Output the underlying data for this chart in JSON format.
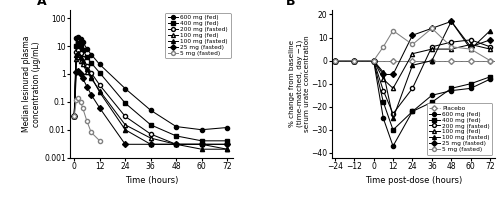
{
  "panel_A": {
    "title": "A",
    "xlabel": "Time (hours)",
    "ylabel": "Median lesinurad plasma\nconcentration (μg/mL)",
    "xlim": [
      -2,
      75
    ],
    "ylim_log": [
      0.001,
      200
    ],
    "xticks": [
      0,
      12,
      24,
      36,
      48,
      60,
      72
    ],
    "yticks": [
      0.001,
      0.01,
      0.1,
      1,
      10,
      100
    ],
    "ytick_labels": [
      "0.001",
      "0.01",
      "0.1",
      "1",
      "10",
      "100"
    ],
    "series": [
      {
        "label": "600 mg (fed)",
        "marker": "o",
        "fillstyle": "full",
        "color": "black",
        "time": [
          0,
          1,
          2,
          3,
          4,
          6,
          8,
          12,
          24,
          36,
          48,
          60,
          72
        ],
        "conc": [
          0.03,
          20,
          22,
          18,
          14,
          8,
          5,
          2.2,
          0.3,
          0.05,
          0.013,
          0.01,
          0.012
        ]
      },
      {
        "label": "400 mg (fed)",
        "marker": "s",
        "fillstyle": "full",
        "color": "black",
        "time": [
          0,
          1,
          2,
          3,
          4,
          6,
          8,
          12,
          24,
          36,
          48,
          60,
          72
        ],
        "conc": [
          0.03,
          10,
          13,
          10,
          7.5,
          4,
          2.5,
          1.1,
          0.09,
          0.015,
          0.006,
          0.004,
          0.004
        ]
      },
      {
        "label": "200 mg (fasted)",
        "marker": "o",
        "fillstyle": "none",
        "color": "black",
        "time": [
          0,
          1,
          2,
          3,
          4,
          6,
          8,
          12,
          24,
          36,
          48,
          60,
          72
        ],
        "conc": [
          0.03,
          6,
          7,
          5.5,
          3.8,
          2.0,
          1.1,
          0.4,
          0.03,
          0.007,
          0.003,
          0.003,
          0.003
        ]
      },
      {
        "label": "100 mg (fed)",
        "marker": "^",
        "fillstyle": "none",
        "color": "black",
        "time": [
          0,
          1,
          2,
          3,
          4,
          6,
          8,
          12,
          24,
          36,
          48,
          60,
          72
        ],
        "conc": [
          0.03,
          3.5,
          4,
          3,
          2.2,
          1.2,
          0.7,
          0.25,
          0.015,
          0.005,
          0.003,
          0.003,
          0.002
        ]
      },
      {
        "label": "100 mg (fasted)",
        "marker": "^",
        "fillstyle": "full",
        "color": "black",
        "time": [
          0,
          1,
          2,
          3,
          4,
          6,
          8,
          12,
          24,
          36,
          48,
          60,
          72
        ],
        "conc": [
          0.03,
          5,
          5.5,
          4.2,
          3.0,
          1.5,
          0.8,
          0.22,
          0.01,
          0.003,
          0.003,
          0.002,
          0.002
        ]
      },
      {
        "label": "25 mg (fasted)",
        "marker": "D",
        "fillstyle": "full",
        "color": "black",
        "time": [
          0,
          1,
          2,
          3,
          4,
          6,
          8,
          12,
          24,
          36,
          48,
          60,
          72
        ],
        "conc": [
          0.03,
          1.2,
          1.3,
          1.0,
          0.7,
          0.35,
          0.18,
          0.06,
          0.003,
          0.003,
          0.003,
          0.003,
          0.003
        ]
      },
      {
        "label": "5 mg (fasted)",
        "marker": "o",
        "fillstyle": "none",
        "color": "gray",
        "time": [
          0,
          1,
          2,
          3,
          4,
          6,
          8,
          12
        ],
        "conc": [
          0.03,
          0.12,
          0.14,
          0.1,
          0.06,
          0.02,
          0.008,
          0.004
        ]
      }
    ],
    "legend_entries": [
      {
        "label": "600 mg (fed)",
        "marker": "o",
        "fillstyle": "full",
        "color": "black"
      },
      {
        "label": "400 mg (fed)",
        "marker": "s",
        "fillstyle": "full",
        "color": "black"
      },
      {
        "label": "200 mg (fasted)",
        "marker": "o",
        "fillstyle": "none",
        "color": "black"
      },
      {
        "label": "100 mg (fed)",
        "marker": "^",
        "fillstyle": "none",
        "color": "black"
      },
      {
        "label": "100 mg (fasted)",
        "marker": "^",
        "fillstyle": "full",
        "color": "black"
      },
      {
        "label": "25 mg (fasted)",
        "marker": "D",
        "fillstyle": "full",
        "color": "black"
      },
      {
        "label": "5 mg (fasted)",
        "marker": "o",
        "fillstyle": "none",
        "color": "gray"
      }
    ]
  },
  "panel_B": {
    "title": "B",
    "xlabel": "Time post-dose (hours)",
    "ylabel": "% change from baseline\n(time-matched, day −1)\nserum urate concentration",
    "xlim": [
      -26,
      75
    ],
    "ylim": [
      -42,
      22
    ],
    "xticks": [
      -24,
      -12,
      0,
      12,
      24,
      36,
      48,
      60,
      72
    ],
    "yticks": [
      -40,
      -30,
      -20,
      -10,
      0,
      10,
      20
    ],
    "series": [
      {
        "label": "Placebo",
        "marker": "D",
        "fillstyle": "none",
        "color": "gray",
        "linestyle": "--",
        "time": [
          -24,
          -12,
          0,
          12,
          24,
          36,
          48,
          60,
          72
        ],
        "pct": [
          0,
          0,
          0,
          0,
          0,
          0,
          0,
          0,
          0
        ]
      },
      {
        "label": "600 mg (fed)",
        "marker": "o",
        "fillstyle": "full",
        "color": "black",
        "linestyle": "-",
        "time": [
          -24,
          -12,
          0,
          6,
          12,
          24,
          36,
          48,
          60,
          72
        ],
        "pct": [
          0,
          0,
          0,
          -25,
          -37,
          -22,
          -15,
          -13,
          -12,
          -8
        ]
      },
      {
        "label": "400 mg (fed)",
        "marker": "s",
        "fillstyle": "full",
        "color": "black",
        "linestyle": "-",
        "time": [
          -24,
          -12,
          0,
          6,
          12,
          24,
          36,
          48,
          60,
          72
        ],
        "pct": [
          0,
          0,
          0,
          -18,
          -30,
          -22,
          -18,
          -12,
          -10,
          -7
        ]
      },
      {
        "label": "200 mg (fasted)",
        "marker": "o",
        "fillstyle": "none",
        "color": "black",
        "linestyle": "-",
        "time": [
          -24,
          -12,
          0,
          6,
          12,
          24,
          36,
          48,
          60,
          72
        ],
        "pct": [
          0,
          0,
          0,
          -13,
          -23,
          -12,
          6,
          8,
          9,
          6
        ]
      },
      {
        "label": "100 mg (fed)",
        "marker": "^",
        "fillstyle": "none",
        "color": "black",
        "linestyle": "-",
        "time": [
          -24,
          -12,
          0,
          6,
          12,
          24,
          36,
          48,
          60,
          72
        ],
        "pct": [
          0,
          0,
          0,
          -8,
          -12,
          3,
          5,
          5,
          7,
          5
        ]
      },
      {
        "label": "100 mg (fasted)",
        "marker": "^",
        "fillstyle": "full",
        "color": "black",
        "linestyle": "-",
        "time": [
          -24,
          -12,
          0,
          6,
          12,
          24,
          36,
          48,
          60,
          72
        ],
        "pct": [
          0,
          0,
          0,
          -5,
          -25,
          -2,
          0,
          17,
          5,
          13
        ]
      },
      {
        "label": "25 mg (fasted)",
        "marker": "D",
        "fillstyle": "full",
        "color": "black",
        "linestyle": "-",
        "time": [
          -24,
          -12,
          0,
          6,
          12,
          24,
          36,
          48,
          60,
          72
        ],
        "pct": [
          0,
          0,
          0,
          -6,
          -6,
          11,
          14,
          17,
          6,
          9
        ]
      },
      {
        "label": "5 mg (fasted)",
        "marker": "o",
        "fillstyle": "none",
        "color": "gray",
        "linestyle": "-",
        "time": [
          -24,
          -12,
          0,
          6,
          12,
          24,
          36,
          48,
          60,
          72
        ],
        "pct": [
          0,
          0,
          0,
          6,
          13,
          7,
          14,
          6,
          5,
          0
        ]
      }
    ],
    "legend_entries": [
      {
        "label": "Placebo",
        "marker": "D",
        "fillstyle": "none",
        "color": "gray",
        "linestyle": "--"
      },
      {
        "label": "600 mg (fed)",
        "marker": "o",
        "fillstyle": "full",
        "color": "black",
        "linestyle": "-"
      },
      {
        "label": "400 mg (fed)",
        "marker": "s",
        "fillstyle": "full",
        "color": "black",
        "linestyle": "-"
      },
      {
        "label": "200 mg (fasted)",
        "marker": "o",
        "fillstyle": "none",
        "color": "black",
        "linestyle": "-"
      },
      {
        "label": "100 mg (fed)",
        "marker": "^",
        "fillstyle": "none",
        "color": "black",
        "linestyle": "-"
      },
      {
        "label": "100 mg (fasted)",
        "marker": "^",
        "fillstyle": "full",
        "color": "black",
        "linestyle": "-"
      },
      {
        "label": "25 mg (fasted)",
        "marker": "D",
        "fillstyle": "full",
        "color": "black",
        "linestyle": "-"
      },
      {
        "label": "5 mg (fasted)",
        "marker": "o",
        "fillstyle": "none",
        "color": "gray",
        "linestyle": "-"
      }
    ]
  }
}
